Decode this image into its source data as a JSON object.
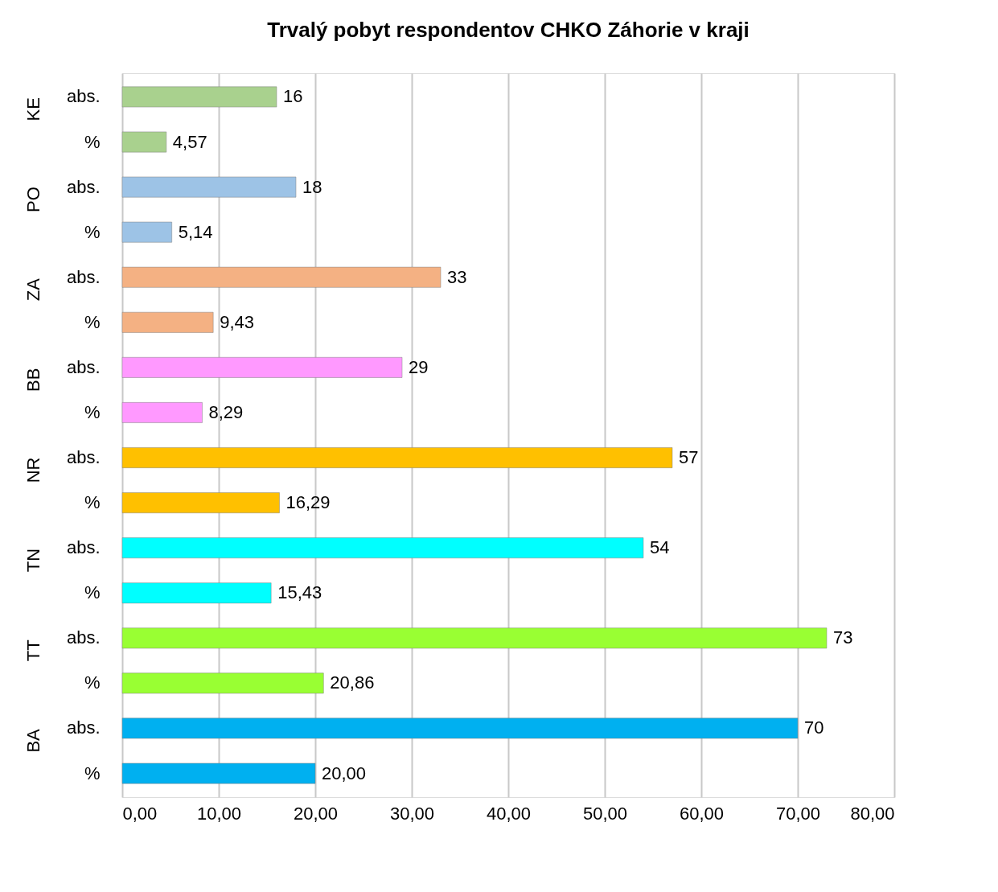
{
  "chart_data": {
    "type": "bar",
    "orientation": "horizontal",
    "title": "Trvalý pobyt respondentov CHKO Záhorie v kraji",
    "categories": [
      "abs.",
      "%",
      "abs.",
      "%",
      "abs.",
      "%",
      "abs.",
      "%",
      "abs.",
      "%",
      "abs.",
      "%",
      "abs.",
      "%",
      "abs.",
      "%"
    ],
    "values": [
      16,
      4.57,
      18,
      5.14,
      33,
      9.43,
      29,
      8.29,
      57,
      16.29,
      54,
      15.43,
      73,
      20.86,
      70,
      20.0
    ],
    "value_labels": [
      "16",
      "4,57",
      "18",
      "5,14",
      "33",
      "9,43",
      "29",
      "8,29",
      "57",
      "16,29",
      "54",
      "15,43",
      "73",
      "20,86",
      "70",
      "20,00"
    ],
    "colors": [
      "#a9d18e",
      "#a9d18e",
      "#9dc3e6",
      "#9dc3e6",
      "#f4b183",
      "#f4b183",
      "#ff99ff",
      "#ff99ff",
      "#ffc000",
      "#ffc000",
      "#00ffff",
      "#00ffff",
      "#99ff33",
      "#99ff33",
      "#00b0f0",
      "#00b0f0"
    ],
    "annotations": [
      "KE",
      "PO",
      "ZA",
      "BB",
      "NR",
      "TN",
      "TT",
      "BA"
    ],
    "xlim": [
      0,
      80
    ],
    "xticks": [
      {
        "value": 0,
        "label": "0,00"
      },
      {
        "value": 10,
        "label": "10,00"
      },
      {
        "value": 20,
        "label": "20,00"
      },
      {
        "value": 30,
        "label": "30,00"
      },
      {
        "value": 40,
        "label": "40,00"
      },
      {
        "value": 50,
        "label": "50,00"
      },
      {
        "value": 60,
        "label": "60,00"
      },
      {
        "value": 70,
        "label": "70,00"
      },
      {
        "value": 80,
        "label": "80,00"
      }
    ],
    "grid": "x"
  }
}
